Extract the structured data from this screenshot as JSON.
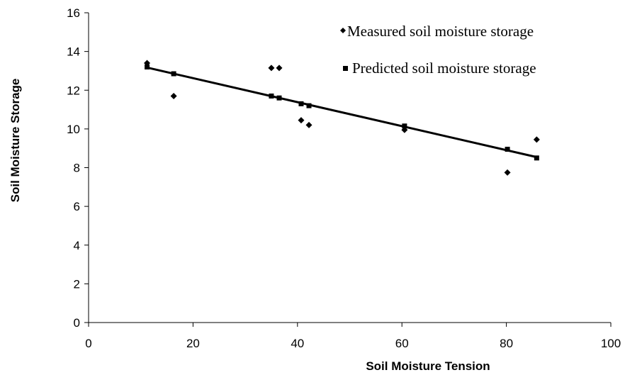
{
  "chart_data": {
    "type": "scatter",
    "title": "",
    "xlabel": "Soil Moisture Tension",
    "ylabel": "Soil Moisture Storage",
    "xlim": [
      0,
      100
    ],
    "ylim": [
      0,
      16
    ],
    "xticks": [
      0,
      20,
      40,
      60,
      80,
      100
    ],
    "yticks": [
      0,
      2,
      4,
      6,
      8,
      10,
      12,
      14,
      16
    ],
    "grid": false,
    "legend_position": "top-right",
    "series": [
      {
        "name": "Measured soil  moisture storage",
        "marker": "diamond",
        "color": "#000000",
        "x": [
          11.2,
          16.3,
          35.0,
          36.5,
          40.7,
          42.2,
          60.5,
          80.2,
          85.8
        ],
        "y": [
          13.4,
          11.7,
          13.15,
          13.15,
          10.45,
          10.2,
          9.95,
          7.75,
          9.45
        ]
      },
      {
        "name": "Predicted  soil moisture storage",
        "marker": "square",
        "color": "#000000",
        "line": true,
        "x": [
          11.2,
          16.3,
          35.0,
          36.5,
          40.7,
          42.2,
          60.5,
          80.2,
          85.8
        ],
        "y": [
          13.2,
          12.85,
          11.7,
          11.6,
          11.3,
          11.2,
          10.15,
          8.95,
          8.5
        ]
      }
    ]
  }
}
